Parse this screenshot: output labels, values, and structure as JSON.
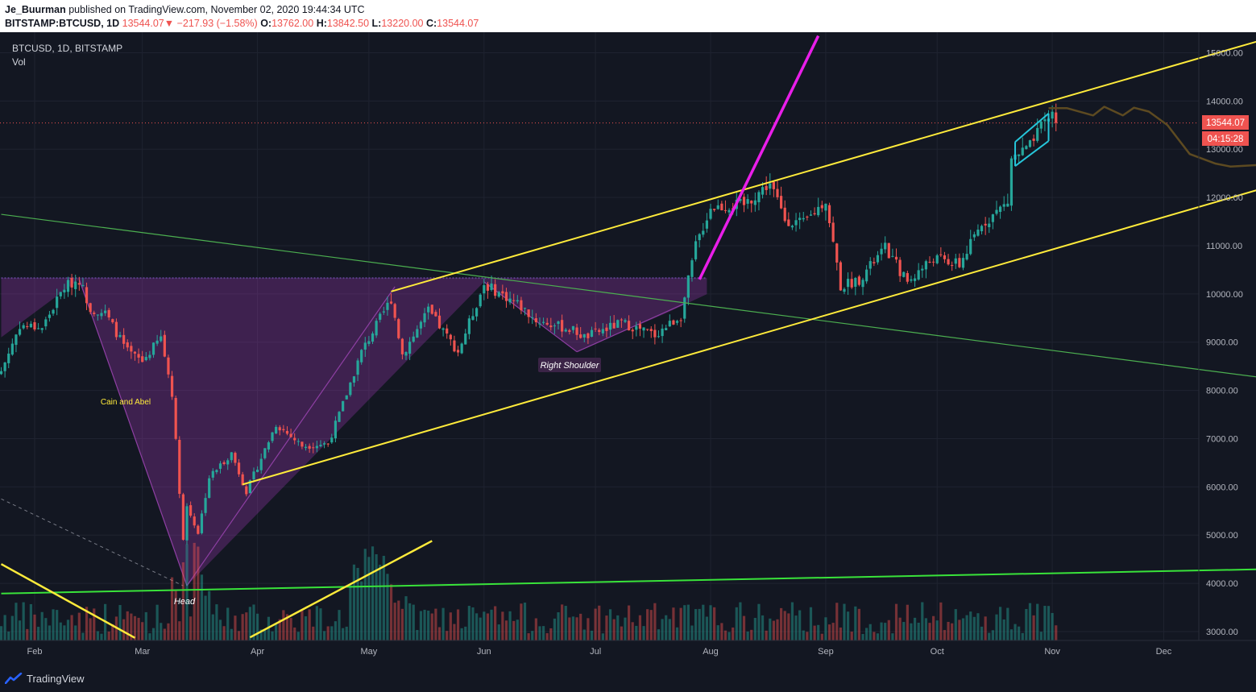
{
  "header": {
    "publisher": "Je_Buurman",
    "published_text": "published on TradingView.com, November 02, 2020 19:44:34 UTC",
    "symbol": "BITSTAMP:BTCUSD, 1D",
    "last": "13544.07",
    "change_arrow": "▼",
    "change": "−217.93 (−1.58%)",
    "o_label": "O:",
    "o_value": "13762.00",
    "h_label": "H:",
    "h_value": "13842.50",
    "l_label": "L:",
    "l_value": "13220.00",
    "c_label": "C:",
    "c_value": "13544.07"
  },
  "legend": {
    "title": "BTCUSD, 1D, BITSTAMP",
    "volume": "Vol"
  },
  "price_tag": {
    "value": "13544.07",
    "countdown": "04:15:28"
  },
  "annotations": {
    "head": "Head",
    "right_shoulder": "Right Shoulder",
    "cain_abel": "Cain and Abel"
  },
  "footer": {
    "brand": "TradingView"
  },
  "colors": {
    "background": "#131722",
    "up": "#26a69a",
    "down": "#ef5350",
    "yellow_line": "#ffeb3b",
    "magenta_line": "#e91ee9",
    "green_line": "#4caf50",
    "cyan_line": "#26c6da",
    "projection": "#5d4a21"
  },
  "chart_data": {
    "type": "candlestick",
    "symbol": "BTCUSD",
    "interval": "1D",
    "exchange": "BITSTAMP",
    "y_ticks": [
      3000,
      4000,
      5000,
      6000,
      7000,
      8000,
      9000,
      10000,
      11000,
      12000,
      13000,
      14000,
      15000
    ],
    "y_tick_labels": [
      "3000.00",
      "4000.00",
      "5000.00",
      "6000.00",
      "7000.00",
      "8000.00",
      "9000.00",
      "10000.00",
      "11000.00",
      "12000.00",
      "13000.00",
      "14000.00",
      "15000.00"
    ],
    "x_ticks": [
      "Feb",
      "Mar",
      "Apr",
      "May",
      "Jun",
      "Jul",
      "Aug",
      "Sep",
      "Oct",
      "Nov",
      "Dec"
    ],
    "ylim": [
      2850,
      15300
    ],
    "last_price": 13544.07,
    "price_path": [
      {
        "date": "2020-01-23",
        "close": 8400
      },
      {
        "date": "2020-01-28",
        "close": 9350
      },
      {
        "date": "2020-02-03",
        "close": 9300
      },
      {
        "date": "2020-02-09",
        "close": 10150
      },
      {
        "date": "2020-02-13",
        "close": 10300
      },
      {
        "date": "2020-02-16",
        "close": 9700
      },
      {
        "date": "2020-02-20",
        "close": 9600
      },
      {
        "date": "2020-02-26",
        "close": 8800
      },
      {
        "date": "2020-03-01",
        "close": 8600
      },
      {
        "date": "2020-03-06",
        "close": 9100
      },
      {
        "date": "2020-03-09",
        "close": 7950
      },
      {
        "date": "2020-03-12",
        "close": 4900
      },
      {
        "date": "2020-03-13",
        "close": 5600
      },
      {
        "date": "2020-03-16",
        "close": 5050
      },
      {
        "date": "2020-03-19",
        "close": 6200
      },
      {
        "date": "2020-03-25",
        "close": 6700
      },
      {
        "date": "2020-03-29",
        "close": 5900
      },
      {
        "date": "2020-04-06",
        "close": 7300
      },
      {
        "date": "2020-04-13",
        "close": 6850
      },
      {
        "date": "2020-04-20",
        "close": 6900
      },
      {
        "date": "2020-04-23",
        "close": 7500
      },
      {
        "date": "2020-04-29",
        "close": 8800
      },
      {
        "date": "2020-05-07",
        "close": 9900
      },
      {
        "date": "2020-05-10",
        "close": 8750
      },
      {
        "date": "2020-05-17",
        "close": 9650
      },
      {
        "date": "2020-05-25",
        "close": 8800
      },
      {
        "date": "2020-06-01",
        "close": 10200
      },
      {
        "date": "2020-06-10",
        "close": 9800
      },
      {
        "date": "2020-06-15",
        "close": 9450
      },
      {
        "date": "2020-06-25",
        "close": 9250
      },
      {
        "date": "2020-06-28",
        "close": 9100
      },
      {
        "date": "2020-07-08",
        "close": 9400
      },
      {
        "date": "2020-07-17",
        "close": 9150
      },
      {
        "date": "2020-07-24",
        "close": 9550
      },
      {
        "date": "2020-07-28",
        "close": 11000
      },
      {
        "date": "2020-08-01",
        "close": 11800
      },
      {
        "date": "2020-08-10",
        "close": 11850
      },
      {
        "date": "2020-08-17",
        "close": 12300
      },
      {
        "date": "2020-08-21",
        "close": 11550
      },
      {
        "date": "2020-08-26",
        "close": 11450
      },
      {
        "date": "2020-09-01",
        "close": 11950
      },
      {
        "date": "2020-09-05",
        "close": 10150
      },
      {
        "date": "2020-09-10",
        "close": 10300
      },
      {
        "date": "2020-09-17",
        "close": 10950
      },
      {
        "date": "2020-09-23",
        "close": 10250
      },
      {
        "date": "2020-09-30",
        "close": 10750
      },
      {
        "date": "2020-10-07",
        "close": 10600
      },
      {
        "date": "2020-10-13",
        "close": 11450
      },
      {
        "date": "2020-10-20",
        "close": 11900
      },
      {
        "date": "2020-10-21",
        "close": 12800
      },
      {
        "date": "2020-10-26",
        "close": 13050
      },
      {
        "date": "2020-10-30",
        "close": 13560
      },
      {
        "date": "2020-11-01",
        "close": 13762
      },
      {
        "date": "2020-11-02",
        "close": 13544.07
      }
    ],
    "drawings": {
      "yellow_channel_upper": [
        [
          "2020-05-07",
          10050
        ],
        [
          "2020-12-26",
          15230
        ]
      ],
      "yellow_channel_lower": [
        [
          "2020-03-28",
          6050
        ],
        [
          "2020-12-26",
          12150
        ]
      ],
      "yellow_small_1": [
        [
          "2020-01-23",
          4400
        ],
        [
          "2020-02-28",
          2870
        ]
      ],
      "yellow_small_2": [
        [
          "2020-03-30",
          2880
        ],
        [
          "2020-05-18",
          4880
        ]
      ],
      "magenta_trend": [
        [
          "2020-07-29",
          10300
        ],
        [
          "2020-08-30",
          15350
        ]
      ],
      "green_downtrend": [
        [
          "2020-01-23",
          11650
        ],
        [
          "2020-12-26",
          8280
        ]
      ],
      "green_support": [
        [
          "2020-01-23",
          3790
        ],
        [
          "2020-12-26",
          4290
        ]
      ],
      "head_shoulders_neckline": 10330,
      "cyan_flag_upper": [
        [
          "2020-10-22",
          13150
        ],
        [
          "2020-10-31",
          13740
        ]
      ],
      "cyan_flag_lower": [
        [
          "2020-10-22",
          12650
        ],
        [
          "2020-10-31",
          13170
        ]
      ],
      "projection_path": [
        [
          "2020-10-31",
          13850
        ],
        [
          "2020-11-05",
          13850
        ],
        [
          "2020-11-12",
          13700
        ],
        [
          "2020-11-15",
          13880
        ],
        [
          "2020-11-20",
          13700
        ],
        [
          "2020-11-23",
          13860
        ],
        [
          "2020-11-27",
          13780
        ],
        [
          "2020-12-02",
          13500
        ],
        [
          "2020-12-08",
          12900
        ],
        [
          "2020-12-15",
          12700
        ],
        [
          "2020-12-19",
          12640
        ],
        [
          "2020-12-26",
          12670
        ]
      ]
    }
  }
}
